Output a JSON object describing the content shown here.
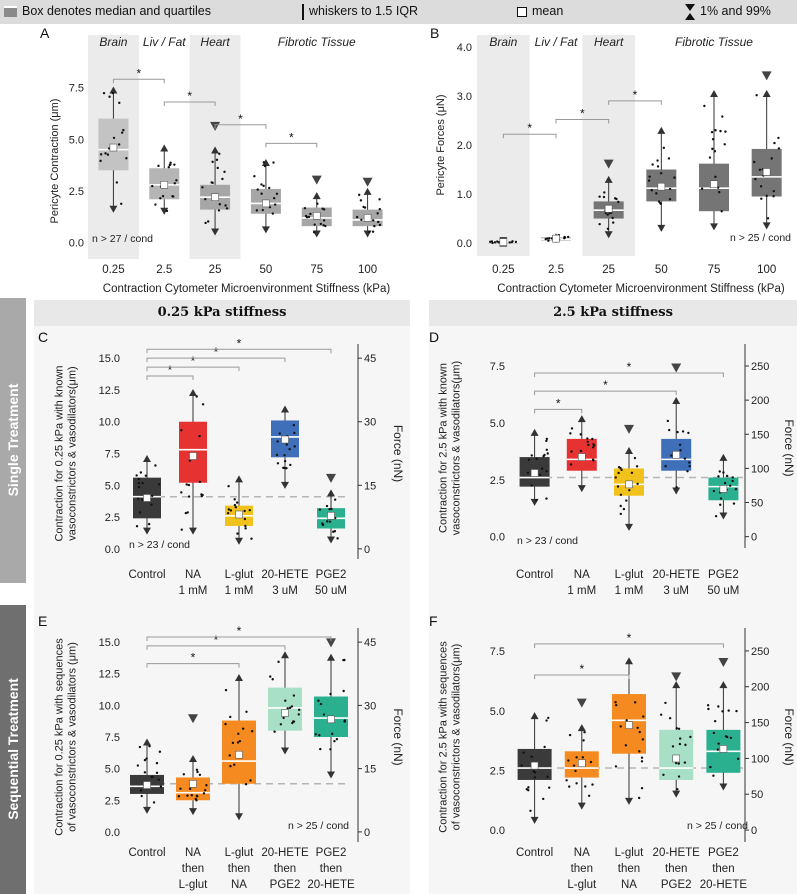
{
  "legend": {
    "box": "Box denotes median and quartiles",
    "whiskers": "whiskers to 1.5 IQR",
    "mean": "mean",
    "percentiles": "1% and 99%"
  },
  "side_labels": {
    "single": "Single Treatment",
    "sequential": "Sequential Treatment"
  },
  "section_headers": {
    "left": "0.25 kPa stiffness",
    "right": "2.5 kPa stiffness"
  },
  "colors": {
    "light_gray": "#c3c3c3",
    "mid_gray": "#a6a6a6",
    "dark_gray": "#757575",
    "control": "#3a3a3a",
    "na": "#e63332",
    "lglut": "#f2c21c",
    "hete": "#3f6fb8",
    "pge2": "#2ab08f",
    "orange": "#f58b20",
    "light_teal": "#a7dfc7"
  },
  "chart_data": [
    {
      "id": "A",
      "type": "box",
      "panel_label": "A",
      "ylabel": "Pericyte Contraction (μm)",
      "xlabel": "Contraction Cytometer Microenvironment Stiffness (kPa)",
      "ylim": [
        -0.4,
        8.3
      ],
      "yticks": [
        0,
        2.5,
        5,
        7.5
      ],
      "ytick_labels": [
        "0.0",
        "2.5",
        "5.0",
        "7.5"
      ],
      "categories": [
        "0.25",
        "2.5",
        "25",
        "50",
        "75",
        "100"
      ],
      "regions": [
        {
          "label": "Brain",
          "shaded": true,
          "from": 0,
          "to": 0
        },
        {
          "label": "Liv / Fat",
          "shaded": false,
          "from": 1,
          "to": 1
        },
        {
          "label": "Heart",
          "shaded": true,
          "from": 2,
          "to": 2
        },
        {
          "label": "Fibrotic Tissue",
          "shaded": false,
          "from": 3,
          "to": 5
        }
      ],
      "boxes": [
        {
          "q1": 3.5,
          "median": 4.5,
          "q3": 6.0,
          "wlo": 1.5,
          "whi": 7.5,
          "mean": 4.6,
          "color": "#c3c3c3"
        },
        {
          "q1": 2.1,
          "median": 2.8,
          "q3": 3.6,
          "wlo": 1.4,
          "whi": 4.7,
          "mean": 2.8,
          "color": "#b5b5b5"
        },
        {
          "q1": 1.6,
          "median": 2.2,
          "q3": 2.8,
          "wlo": 0.4,
          "whi": 4.6,
          "mean": 2.2,
          "marker_hi": 5.6,
          "color": "#a6a6a6"
        },
        {
          "q1": 1.4,
          "median": 1.9,
          "q3": 2.6,
          "wlo": 0.5,
          "whi": 4.0,
          "mean": 1.9,
          "color": "#a6a6a6"
        },
        {
          "q1": 0.8,
          "median": 1.2,
          "q3": 1.7,
          "wlo": 0.3,
          "whi": 2.4,
          "mean": 1.3,
          "marker_hi": 3.0,
          "color": "#a6a6a6"
        },
        {
          "q1": 0.8,
          "median": 1.1,
          "q3": 1.6,
          "wlo": 0.3,
          "whi": 2.6,
          "mean": 1.2,
          "marker_hi": 2.9,
          "color": "#a6a6a6"
        }
      ],
      "significance": [
        {
          "from": 0,
          "to": 1,
          "y": 7.9,
          "label": "*"
        },
        {
          "from": 1,
          "to": 2,
          "y": 6.8,
          "label": "*"
        },
        {
          "from": 2,
          "to": 3,
          "y": 5.7,
          "label": "*"
        },
        {
          "from": 3,
          "to": 4,
          "y": 4.8,
          "label": "*"
        }
      ],
      "annotation": "n > 27 / cond"
    },
    {
      "id": "B",
      "type": "box",
      "panel_label": "B",
      "ylabel": "Pericyte Forces (μN)",
      "xlabel": "Contraction Cytometer Microenvironment Stiffness (kPa)",
      "ylim": [
        -0.1,
        4.1
      ],
      "yticks": [
        0,
        1,
        2,
        3,
        4
      ],
      "ytick_labels": [
        "0.0",
        "1.0",
        "2.0",
        "3.0",
        "4.0"
      ],
      "categories": [
        "0.25",
        "2.5",
        "25",
        "50",
        "75",
        "100"
      ],
      "regions": [
        {
          "label": "Brain",
          "shaded": true,
          "from": 0,
          "to": 0
        },
        {
          "label": "Liv / Fat",
          "shaded": false,
          "from": 1,
          "to": 1
        },
        {
          "label": "Heart",
          "shaded": true,
          "from": 2,
          "to": 2
        },
        {
          "label": "Fibrotic Tissue",
          "shaded": false,
          "from": 3,
          "to": 5
        }
      ],
      "boxes": [
        {
          "q1": 0.01,
          "median": 0.02,
          "q3": 0.03,
          "wlo": 0.0,
          "whi": 0.05,
          "mean": 0.02,
          "color": "#c3c3c3"
        },
        {
          "q1": 0.05,
          "median": 0.08,
          "q3": 0.12,
          "wlo": 0.02,
          "whi": 0.18,
          "mean": 0.09,
          "color": "#b5b5b5"
        },
        {
          "q1": 0.5,
          "median": 0.67,
          "q3": 0.85,
          "wlo": 0.12,
          "whi": 1.35,
          "mean": 0.7,
          "marker_hi": 1.6,
          "color": "#757575"
        },
        {
          "q1": 0.85,
          "median": 1.12,
          "q3": 1.5,
          "wlo": 0.25,
          "whi": 2.35,
          "mean": 1.15,
          "color": "#757575"
        },
        {
          "q1": 0.65,
          "median": 1.12,
          "q3": 1.62,
          "wlo": 0.28,
          "whi": 3.1,
          "mean": 1.2,
          "color": "#757575"
        },
        {
          "q1": 0.95,
          "median": 1.35,
          "q3": 1.92,
          "wlo": 0.3,
          "whi": 3.1,
          "mean": 1.45,
          "marker_hi": 3.4,
          "color": "#757575"
        }
      ],
      "significance": [
        {
          "from": 0,
          "to": 1,
          "y": 2.22,
          "label": "*"
        },
        {
          "from": 1,
          "to": 2,
          "y": 2.52,
          "label": "*"
        },
        {
          "from": 2,
          "to": 3,
          "y": 2.9,
          "label": "*"
        }
      ],
      "annotation": "n > 25 / cond"
    },
    {
      "id": "C",
      "type": "box",
      "panel_label": "C",
      "ylabel": [
        "Contraction for 0.25 kPa with known",
        "vasoconstrictors & vasodilators(μm)"
      ],
      "ylabel_right": "Force (nN)",
      "ylim": [
        -0.8,
        15.8
      ],
      "yticks": [
        0,
        2.5,
        5,
        7.5,
        10,
        12.5,
        15
      ],
      "ytick_labels": [
        "0.0",
        "2.5",
        "5.0",
        "7.5",
        "10.0",
        "12.5",
        "15.0"
      ],
      "yticks_right": [
        0,
        15,
        30,
        45
      ],
      "right_scale": 3,
      "categories": [
        "Control",
        "NA\n1 mM",
        "L-glut\n1 mM",
        "20-HETE\n3 uM",
        "PGE2\n50 uM"
      ],
      "baseline": 4.1,
      "boxes": [
        {
          "q1": 2.4,
          "median": 4.1,
          "q3": 5.6,
          "wlo": 1.2,
          "whi": 7.3,
          "mean": 4.0,
          "color": "#3a3a3a"
        },
        {
          "q1": 5.2,
          "median": 7.8,
          "q3": 10.0,
          "wlo": 1.2,
          "whi": 12.5,
          "mean": 7.3,
          "color": "#e63332"
        },
        {
          "q1": 1.8,
          "median": 2.6,
          "q3": 3.4,
          "wlo": 0.4,
          "whi": 5.7,
          "mean": 2.7,
          "color": "#f2c21c"
        },
        {
          "q1": 7.2,
          "median": 8.8,
          "q3": 10.1,
          "wlo": 4.8,
          "whi": 11.2,
          "mean": 8.6,
          "color": "#3f6fb8"
        },
        {
          "q1": 1.6,
          "median": 2.4,
          "q3": 3.2,
          "wlo": 0.5,
          "whi": 4.6,
          "mean": 2.6,
          "marker_hi": 5.5,
          "color": "#2ab08f"
        }
      ],
      "significance": [
        {
          "from": 0,
          "to": 1,
          "y": 13.6,
          "label": "*"
        },
        {
          "from": 0,
          "to": 2,
          "y": 14.3,
          "label": "*"
        },
        {
          "from": 0,
          "to": 3,
          "y": 15.0,
          "label": "*"
        },
        {
          "from": 0,
          "to": 4,
          "y": 15.7,
          "label": "*"
        }
      ],
      "annotation": "n > 23 / cond"
    },
    {
      "id": "D",
      "type": "box",
      "panel_label": "D",
      "ylabel": [
        "Contraction for 2.5 kPa with known",
        "vasoconstrictors & vasodilators(μm)"
      ],
      "ylabel_right": "Force (nN)",
      "ylim": [
        -0.5,
        8.3
      ],
      "yticks": [
        0,
        2.5,
        5,
        7.5
      ],
      "ytick_labels": [
        "0.0",
        "2.5",
        "5.0",
        "7.5"
      ],
      "yticks_right": [
        0,
        50,
        100,
        150,
        200,
        250
      ],
      "right_scale": 33.3,
      "categories": [
        "Control",
        "NA\n1 mM",
        "L-glut\n1 mM",
        "20-HETE\n3 uM",
        "PGE2\n50 uM"
      ],
      "baseline": 2.6,
      "boxes": [
        {
          "q1": 2.2,
          "median": 2.6,
          "q3": 3.5,
          "wlo": 1.4,
          "whi": 4.7,
          "mean": 2.8,
          "color": "#3a3a3a"
        },
        {
          "q1": 2.9,
          "median": 3.4,
          "q3": 4.3,
          "wlo": 2.0,
          "whi": 5.3,
          "mean": 3.5,
          "color": "#e63332"
        },
        {
          "q1": 1.8,
          "median": 2.3,
          "q3": 3.0,
          "wlo": 0.3,
          "whi": 3.9,
          "mean": 2.3,
          "marker_hi": 4.7,
          "color": "#f2c21c"
        },
        {
          "q1": 2.9,
          "median": 3.4,
          "q3": 4.3,
          "wlo": 1.9,
          "whi": 6.1,
          "mean": 3.6,
          "marker_hi": 7.4,
          "color": "#3f6fb8"
        },
        {
          "q1": 1.6,
          "median": 2.2,
          "q3": 2.6,
          "wlo": 0.8,
          "whi": 3.6,
          "mean": 2.1,
          "color": "#2ab08f"
        }
      ],
      "significance": [
        {
          "from": 0,
          "to": 1,
          "y": 5.6,
          "label": "*"
        },
        {
          "from": 0,
          "to": 3,
          "y": 6.4,
          "label": "*"
        },
        {
          "from": 0,
          "to": 4,
          "y": 7.2,
          "label": "*"
        }
      ],
      "annotation": "n > 23 / cond"
    },
    {
      "id": "E",
      "type": "box",
      "panel_label": "E",
      "ylabel": [
        "Contraction for 0.25 kPa with sequences",
        "of vasoconstrictors & vasodilators (μm)"
      ],
      "ylabel_right": "Force (nN)",
      "ylim": [
        -0.8,
        15.8
      ],
      "yticks": [
        0,
        2.5,
        5,
        7.5,
        10,
        12.5,
        15
      ],
      "ytick_labels": [
        "0.0",
        "2.5",
        "5.0",
        "7.5",
        "10.0",
        "12.5",
        "15.0"
      ],
      "yticks_right": [
        0,
        15,
        30,
        45
      ],
      "right_scale": 3,
      "categories": [
        "Control",
        "NA\nthen\nL-glut",
        "L-glut\nthen\nNA",
        "20-HETE\nthen\nPGE2",
        "PGE2\nthen\n20-HETE"
      ],
      "baseline": 3.8,
      "boxes": [
        {
          "q1": 3.0,
          "median": 3.6,
          "q3": 4.5,
          "wlo": 1.5,
          "whi": 7.3,
          "mean": 3.7,
          "color": "#3a3a3a"
        },
        {
          "q1": 2.5,
          "median": 3.1,
          "q3": 4.3,
          "wlo": 1.4,
          "whi": 6.0,
          "mean": 3.8,
          "marker_hi": 8.9,
          "color": "#f58b20"
        },
        {
          "q1": 3.8,
          "median": 5.6,
          "q3": 8.8,
          "wlo": 1.0,
          "whi": 12.4,
          "mean": 6.1,
          "color": "#f58b20"
        },
        {
          "q1": 8.0,
          "median": 9.8,
          "q3": 11.4,
          "wlo": 6.2,
          "whi": 14.2,
          "mean": 9.4,
          "color": "#a7dfc7"
        },
        {
          "q1": 7.5,
          "median": 9.0,
          "q3": 10.7,
          "wlo": 4.3,
          "whi": 14.0,
          "mean": 8.9,
          "marker_hi": 14.9,
          "color": "#2ab08f"
        }
      ],
      "significance": [
        {
          "from": 0,
          "to": 2,
          "y": 13.3,
          "label": "*"
        },
        {
          "from": 0,
          "to": 3,
          "y": 14.7,
          "label": "*"
        },
        {
          "from": 0,
          "to": 4,
          "y": 15.4,
          "label": "*"
        }
      ],
      "annotation": "n > 25 / cond"
    },
    {
      "id": "F",
      "type": "box",
      "panel_label": "F",
      "ylabel": [
        "Contraction for 2.5 kPa with sequences",
        "of vasoconstrictors & vasodilators(μm)"
      ],
      "ylabel_right": "Force (nN)",
      "ylim": [
        -0.5,
        8.3
      ],
      "yticks": [
        0,
        2.5,
        5,
        7.5
      ],
      "ytick_labels": [
        "0.0",
        "2.5",
        "5.0",
        "7.5"
      ],
      "yticks_right": [
        0,
        50,
        100,
        150,
        200,
        250
      ],
      "right_scale": 33.3,
      "categories": [
        "Control",
        "NA\nthen\nL-glut",
        "L-glut\nthen\nNA",
        "20-HETE\nthen\nPGE2",
        "PGE2\nthen\n20-HETE"
      ],
      "baseline": 2.6,
      "boxes": [
        {
          "q1": 2.1,
          "median": 2.6,
          "q3": 3.4,
          "wlo": 0.3,
          "whi": 4.9,
          "mean": 2.7,
          "color": "#3a3a3a"
        },
        {
          "q1": 2.2,
          "median": 2.6,
          "q3": 3.3,
          "wlo": 0.9,
          "whi": 4.4,
          "mean": 2.8,
          "marker_hi": 5.3,
          "color": "#f58b20"
        },
        {
          "q1": 3.2,
          "median": 4.6,
          "q3": 5.7,
          "wlo": 1.1,
          "whi": 7.2,
          "mean": 4.4,
          "color": "#f58b20"
        },
        {
          "q1": 2.1,
          "median": 2.6,
          "q3": 4.2,
          "wlo": 1.4,
          "whi": 6.2,
          "mean": 3.0,
          "marker_hi": 6.4,
          "color": "#a7dfc7"
        },
        {
          "q1": 2.4,
          "median": 3.3,
          "q3": 4.2,
          "wlo": 1.7,
          "whi": 6.2,
          "mean": 3.4,
          "marker_hi": 7.0,
          "color": "#2ab08f"
        }
      ],
      "significance": [
        {
          "from": 0,
          "to": 2,
          "y": 6.5,
          "label": "*"
        },
        {
          "from": 0,
          "to": 4,
          "y": 7.8,
          "label": "*"
        }
      ],
      "annotation": "n > 25 / cond"
    }
  ]
}
